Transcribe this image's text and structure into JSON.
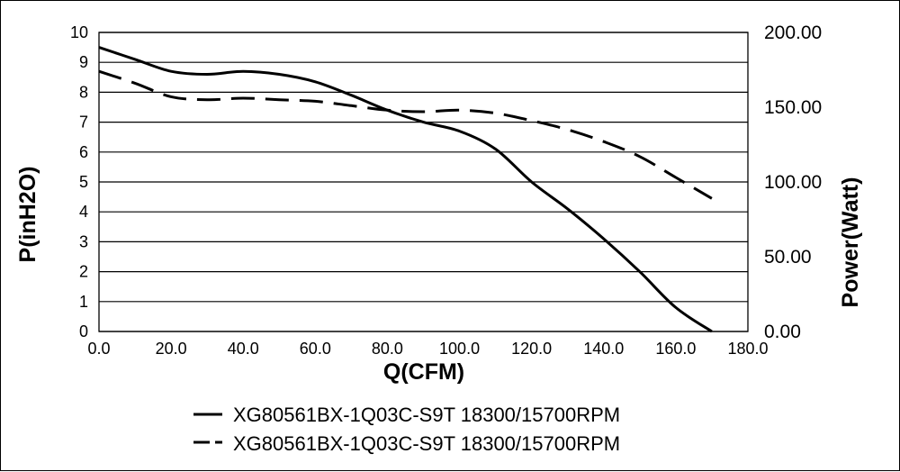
{
  "chart_data": {
    "type": "line",
    "xlabel": "Q(CFM)",
    "ylabel": "P(inH2O)",
    "y2label": "Power(Watt)",
    "xlim": [
      0,
      180
    ],
    "ylim": [
      0,
      10
    ],
    "y2lim": [
      0,
      200
    ],
    "xticks": [
      "0.0",
      "20.0",
      "40.0",
      "60.0",
      "80.0",
      "100.0",
      "120.0",
      "140.0",
      "160.0",
      "180.0"
    ],
    "yticks": [
      "0",
      "1",
      "2",
      "3",
      "4",
      "5",
      "6",
      "7",
      "8",
      "9",
      "10"
    ],
    "y2ticks": [
      "0.00",
      "50.00",
      "100.00",
      "150.00",
      "200.00"
    ],
    "grid": "horizontal",
    "legend_position": "bottom",
    "series": [
      {
        "name": "XG80561BX-1Q03C-S9T 18300/15700RPM",
        "axis": "left",
        "style": "solid",
        "color": "#000000",
        "points": [
          [
            0,
            9.5
          ],
          [
            10,
            9.1
          ],
          [
            20,
            8.7
          ],
          [
            30,
            8.6
          ],
          [
            40,
            8.7
          ],
          [
            50,
            8.6
          ],
          [
            60,
            8.35
          ],
          [
            70,
            7.9
          ],
          [
            80,
            7.4
          ],
          [
            90,
            7.0
          ],
          [
            100,
            6.7
          ],
          [
            110,
            6.1
          ],
          [
            120,
            5.0
          ],
          [
            130,
            4.1
          ],
          [
            140,
            3.1
          ],
          [
            150,
            2.0
          ],
          [
            160,
            0.8
          ],
          [
            170,
            0.0
          ]
        ]
      },
      {
        "name": "XG80561BX-1Q03C-S9T 18300/15700RPM",
        "axis": "right",
        "style": "dashed",
        "color": "#000000",
        "points": [
          [
            0,
            174
          ],
          [
            10,
            166
          ],
          [
            20,
            157
          ],
          [
            30,
            155
          ],
          [
            40,
            156
          ],
          [
            50,
            155
          ],
          [
            60,
            154
          ],
          [
            70,
            151
          ],
          [
            80,
            148
          ],
          [
            90,
            147
          ],
          [
            100,
            148
          ],
          [
            110,
            146
          ],
          [
            120,
            141
          ],
          [
            130,
            135
          ],
          [
            140,
            127
          ],
          [
            150,
            117
          ],
          [
            160,
            103
          ],
          [
            170,
            89
          ]
        ]
      }
    ]
  }
}
